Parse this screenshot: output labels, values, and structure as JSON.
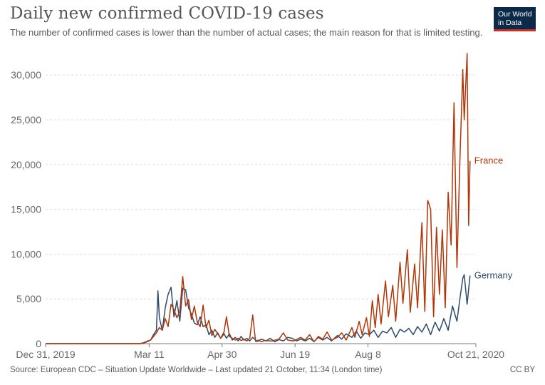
{
  "title": "Daily new confirmed COVID-19 cases",
  "subtitle": "The number of confirmed cases is lower than the number of actual cases; the main reason for that is limited testing.",
  "logo": {
    "line1": "Our World",
    "line2": "in Data"
  },
  "footer": {
    "source": "Source: European CDC – Situation Update Worldwide – Last updated 21 October, 11:34 (London time)",
    "license": "CC BY"
  },
  "colors": {
    "france": "#b13507",
    "germany": "#2d4a6b",
    "grid": "#dddddd",
    "axis": "#666666"
  },
  "chart_data": {
    "type": "line",
    "title": "Daily new confirmed COVID-19 cases",
    "xlabel": "",
    "ylabel": "",
    "ylim": [
      0,
      32000
    ],
    "xlim_days": [
      0,
      295
    ],
    "y_ticks": [
      {
        "value": 0,
        "label": "0"
      },
      {
        "value": 5000,
        "label": "5,000"
      },
      {
        "value": 10000,
        "label": "10,000"
      },
      {
        "value": 15000,
        "label": "15,000"
      },
      {
        "value": 20000,
        "label": "20,000"
      },
      {
        "value": 25000,
        "label": "25,000"
      },
      {
        "value": 30000,
        "label": "30,000"
      }
    ],
    "x_ticks": [
      {
        "day": 0,
        "label": "Dec 31, 2019"
      },
      {
        "day": 71,
        "label": "Mar 11"
      },
      {
        "day": 121,
        "label": "Apr 30"
      },
      {
        "day": 171,
        "label": "Jun 19"
      },
      {
        "day": 221,
        "label": "Aug 8"
      },
      {
        "day": 295,
        "label": "Oct 21, 2020"
      }
    ],
    "series": [
      {
        "name": "France",
        "label": "France",
        "color": "#b13507",
        "points": [
          [
            0,
            0
          ],
          [
            65,
            0
          ],
          [
            68,
            150
          ],
          [
            70,
            300
          ],
          [
            72,
            400
          ],
          [
            74,
            800
          ],
          [
            76,
            1200
          ],
          [
            78,
            1800
          ],
          [
            80,
            1500
          ],
          [
            82,
            2800
          ],
          [
            84,
            1900
          ],
          [
            86,
            4400
          ],
          [
            88,
            3800
          ],
          [
            90,
            2900
          ],
          [
            92,
            3600
          ],
          [
            94,
            7500
          ],
          [
            96,
            4200
          ],
          [
            98,
            4900
          ],
          [
            100,
            2700
          ],
          [
            102,
            4200
          ],
          [
            104,
            2400
          ],
          [
            106,
            1900
          ],
          [
            108,
            4300
          ],
          [
            110,
            1800
          ],
          [
            112,
            2600
          ],
          [
            114,
            900
          ],
          [
            116,
            1600
          ],
          [
            118,
            1100
          ],
          [
            120,
            600
          ],
          [
            122,
            1000
          ],
          [
            124,
            3000
          ],
          [
            126,
            800
          ],
          [
            128,
            600
          ],
          [
            130,
            400
          ],
          [
            132,
            600
          ],
          [
            134,
            350
          ],
          [
            136,
            500
          ],
          [
            138,
            300
          ],
          [
            140,
            600
          ],
          [
            142,
            3200
          ],
          [
            144,
            250
          ],
          [
            146,
            400
          ],
          [
            148,
            200
          ],
          [
            150,
            350
          ],
          [
            155,
            300
          ],
          [
            160,
            500
          ],
          [
            163,
            1200
          ],
          [
            166,
            400
          ],
          [
            170,
            300
          ],
          [
            175,
            700
          ],
          [
            178,
            400
          ],
          [
            181,
            1000
          ],
          [
            184,
            200
          ],
          [
            187,
            800
          ],
          [
            190,
            500
          ],
          [
            193,
            1300
          ],
          [
            196,
            400
          ],
          [
            200,
            700
          ],
          [
            203,
            1200
          ],
          [
            206,
            400
          ],
          [
            210,
            1800
          ],
          [
            212,
            700
          ],
          [
            215,
            2500
          ],
          [
            217,
            1000
          ],
          [
            220,
            2900
          ],
          [
            222,
            800
          ],
          [
            224,
            4800
          ],
          [
            226,
            1800
          ],
          [
            228,
            5500
          ],
          [
            230,
            2200
          ],
          [
            233,
            7000
          ],
          [
            235,
            3000
          ],
          [
            238,
            6500
          ],
          [
            240,
            2500
          ],
          [
            243,
            9100
          ],
          [
            245,
            4500
          ],
          [
            248,
            10500
          ],
          [
            250,
            3500
          ],
          [
            253,
            8900
          ],
          [
            255,
            4000
          ],
          [
            258,
            13500
          ],
          [
            260,
            3600
          ],
          [
            262,
            16000
          ],
          [
            264,
            15000
          ],
          [
            266,
            3000
          ],
          [
            268,
            13000
          ],
          [
            270,
            5500
          ],
          [
            272,
            12700
          ],
          [
            274,
            4000
          ],
          [
            276,
            16900
          ],
          [
            278,
            11000
          ],
          [
            280,
            26900
          ],
          [
            282,
            8500
          ],
          [
            284,
            20300
          ],
          [
            286,
            30600
          ],
          [
            287,
            25000
          ],
          [
            289,
            32400
          ],
          [
            290,
            13200
          ],
          [
            291,
            20400
          ]
        ]
      },
      {
        "name": "Germany",
        "label": "Germany",
        "color": "#2d4a6b",
        "points": [
          [
            0,
            0
          ],
          [
            65,
            0
          ],
          [
            68,
            100
          ],
          [
            70,
            250
          ],
          [
            72,
            400
          ],
          [
            74,
            1000
          ],
          [
            76,
            1500
          ],
          [
            77,
            5900
          ],
          [
            78,
            2900
          ],
          [
            80,
            1500
          ],
          [
            82,
            4000
          ],
          [
            84,
            5500
          ],
          [
            86,
            6300
          ],
          [
            88,
            3000
          ],
          [
            90,
            4800
          ],
          [
            92,
            2500
          ],
          [
            94,
            6200
          ],
          [
            96,
            6000
          ],
          [
            98,
            4000
          ],
          [
            100,
            3300
          ],
          [
            102,
            2300
          ],
          [
            104,
            2100
          ],
          [
            106,
            3000
          ],
          [
            108,
            1900
          ],
          [
            110,
            2100
          ],
          [
            112,
            1000
          ],
          [
            114,
            1500
          ],
          [
            116,
            700
          ],
          [
            118,
            1200
          ],
          [
            120,
            600
          ],
          [
            122,
            1200
          ],
          [
            124,
            600
          ],
          [
            126,
            1100
          ],
          [
            128,
            400
          ],
          [
            130,
            700
          ],
          [
            132,
            300
          ],
          [
            134,
            800
          ],
          [
            136,
            400
          ],
          [
            138,
            600
          ],
          [
            140,
            300
          ],
          [
            142,
            700
          ],
          [
            145,
            250
          ],
          [
            148,
            500
          ],
          [
            151,
            300
          ],
          [
            154,
            600
          ],
          [
            157,
            200
          ],
          [
            160,
            450
          ],
          [
            163,
            300
          ],
          [
            166,
            700
          ],
          [
            169,
            600
          ],
          [
            172,
            300
          ],
          [
            175,
            500
          ],
          [
            178,
            300
          ],
          [
            181,
            600
          ],
          [
            184,
            250
          ],
          [
            187,
            700
          ],
          [
            190,
            400
          ],
          [
            193,
            700
          ],
          [
            196,
            300
          ],
          [
            200,
            900
          ],
          [
            203,
            500
          ],
          [
            206,
            1100
          ],
          [
            210,
            700
          ],
          [
            213,
            1400
          ],
          [
            216,
            600
          ],
          [
            219,
            1200
          ],
          [
            222,
            1000
          ],
          [
            225,
            1500
          ],
          [
            228,
            700
          ],
          [
            231,
            1400
          ],
          [
            234,
            1200
          ],
          [
            237,
            1800
          ],
          [
            240,
            700
          ],
          [
            243,
            1600
          ],
          [
            246,
            1300
          ],
          [
            249,
            1700
          ],
          [
            252,
            1000
          ],
          [
            255,
            1900
          ],
          [
            258,
            1300
          ],
          [
            261,
            2200
          ],
          [
            264,
            1000
          ],
          [
            267,
            2400
          ],
          [
            270,
            1400
          ],
          [
            273,
            2800
          ],
          [
            276,
            1500
          ],
          [
            279,
            4200
          ],
          [
            282,
            2500
          ],
          [
            284,
            5000
          ],
          [
            286,
            7300
          ],
          [
            287,
            7700
          ],
          [
            289,
            4400
          ],
          [
            291,
            7600
          ]
        ]
      }
    ]
  }
}
